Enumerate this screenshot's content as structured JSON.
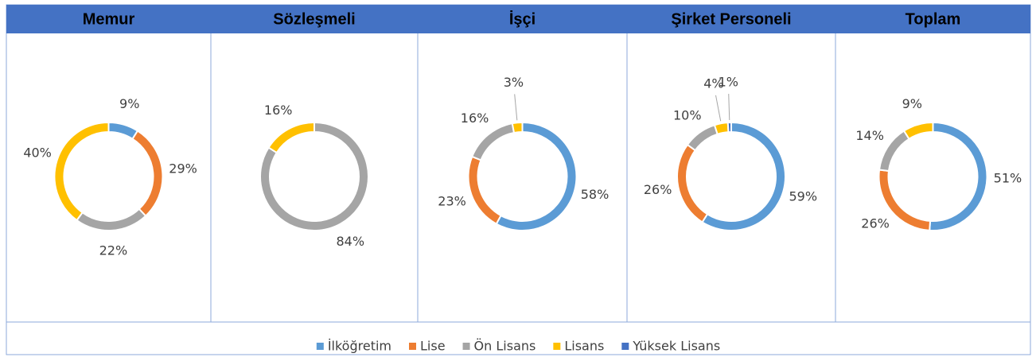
{
  "chart_data": [
    {
      "type": "donut",
      "title": "Memur",
      "categories": [
        "İlköğretim",
        "Lise",
        "Ön Lisans",
        "Lisans",
        "Yüksek Lisans"
      ],
      "values": [
        9,
        29,
        22,
        40,
        null
      ],
      "value_labels": [
        "9%",
        "29%",
        "22%",
        "40%",
        null
      ],
      "colors": [
        "#5b9bd5",
        "#ed7d31",
        "#a5a5a5",
        "#ffc000",
        "#4472c4"
      ]
    },
    {
      "type": "donut",
      "title": "Sözleşmeli",
      "categories": [
        "İlköğretim",
        "Lise",
        "Ön Lisans",
        "Lisans",
        "Yüksek Lisans"
      ],
      "values": [
        null,
        null,
        84,
        16,
        null
      ],
      "value_labels": [
        null,
        null,
        "84%",
        "16%",
        null
      ],
      "colors": [
        "#5b9bd5",
        "#ed7d31",
        "#a5a5a5",
        "#ffc000",
        "#4472c4"
      ]
    },
    {
      "type": "donut",
      "title": "İşçi",
      "categories": [
        "İlköğretim",
        "Lise",
        "Ön Lisans",
        "Lisans",
        "Yüksek Lisans"
      ],
      "values": [
        58,
        23,
        16,
        3,
        null
      ],
      "value_labels": [
        "58%",
        "23%",
        "16%",
        "3%",
        null
      ],
      "colors": [
        "#5b9bd5",
        "#ed7d31",
        "#a5a5a5",
        "#ffc000",
        "#4472c4"
      ]
    },
    {
      "type": "donut",
      "title": "Şirket Personeli",
      "categories": [
        "İlköğretim",
        "Lise",
        "Ön Lisans",
        "Lisans",
        "Yüksek Lisans"
      ],
      "values": [
        59,
        26,
        10,
        4,
        1
      ],
      "value_labels": [
        "59%",
        "26%",
        "10%",
        "4%",
        "1%"
      ],
      "colors": [
        "#5b9bd5",
        "#ed7d31",
        "#a5a5a5",
        "#ffc000",
        "#4472c4"
      ]
    },
    {
      "type": "donut",
      "title": "Toplam",
      "categories": [
        "İlköğretim",
        "Lise",
        "Ön Lisans",
        "Lisans",
        "Yüksek Lisans"
      ],
      "values": [
        51,
        26,
        14,
        9,
        null
      ],
      "value_labels": [
        "51%",
        "26%",
        "14%",
        "9%",
        null
      ],
      "colors": [
        "#5b9bd5",
        "#ed7d31",
        "#a5a5a5",
        "#ffc000",
        "#4472c4"
      ]
    }
  ]
}
